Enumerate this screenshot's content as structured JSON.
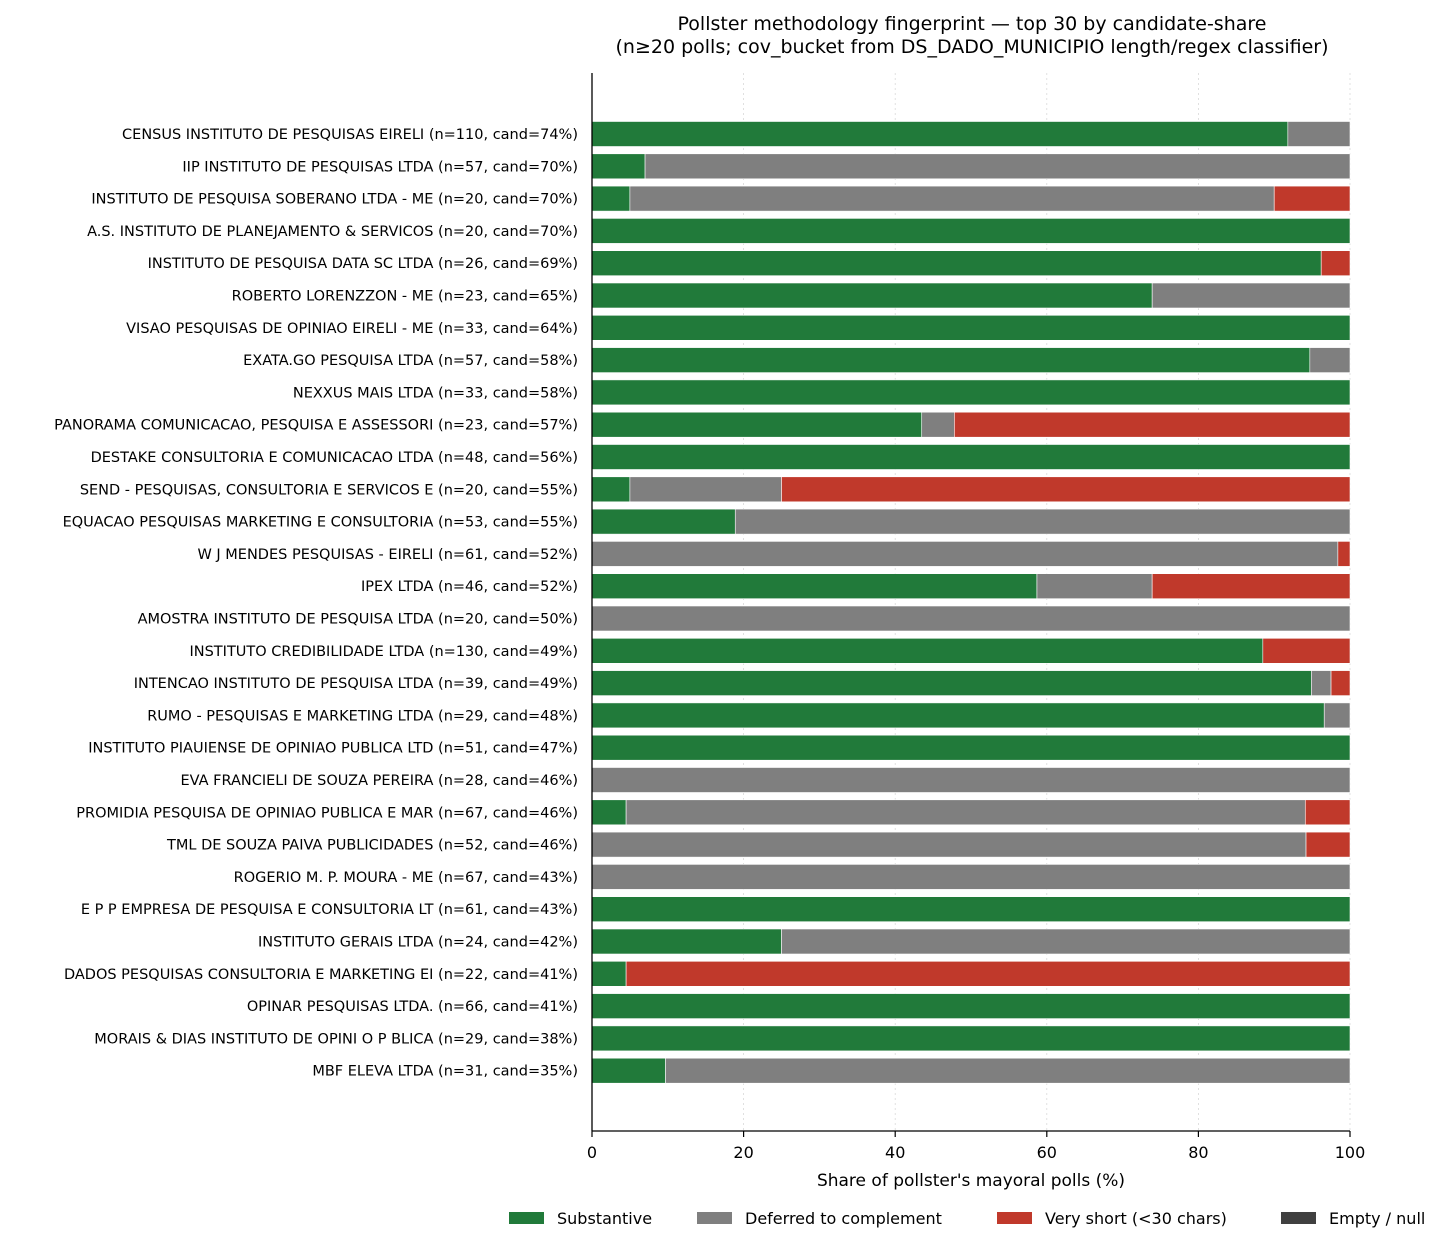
{
  "chart_data": {
    "type": "bar",
    "orientation": "horizontal",
    "stacked": true,
    "title": "Pollster methodology fingerprint — top 30 by candidate-share",
    "subtitle": "(n≥20 polls; cov_bucket from DS_DADO_MUNICIPIO length/regex classifier)",
    "xlabel": "Share of pollster's mayoral polls (%)",
    "ylabel": "",
    "xlim": [
      0,
      100
    ],
    "xticks": [
      "0",
      "20",
      "40",
      "60",
      "80",
      "100"
    ],
    "grid": "vertical dotted",
    "legend_position": "bottom",
    "categories": [
      "CENSUS INSTITUTO DE PESQUISAS EIRELI  (n=110, cand=74%)",
      "IIP INSTITUTO DE PESQUISAS LTDA  (n=57, cand=70%)",
      "INSTITUTO DE PESQUISA SOBERANO LTDA - ME  (n=20, cand=70%)",
      "A.S. INSTITUTO DE PLANEJAMENTO & SERVICOS   (n=20, cand=70%)",
      "INSTITUTO DE PESQUISA DATA SC LTDA  (n=26, cand=69%)",
      "ROBERTO LORENZZON - ME  (n=23, cand=65%)",
      "VISAO PESQUISAS DE OPINIAO EIRELI  - ME  (n=33, cand=64%)",
      "EXATA.GO PESQUISA LTDA  (n=57, cand=58%)",
      "NEXXUS MAIS LTDA  (n=33, cand=58%)",
      "PANORAMA COMUNICACAO, PESQUISA E ASSESSORI  (n=23, cand=57%)",
      "DESTAKE CONSULTORIA E COMUNICACAO LTDA  (n=48, cand=56%)",
      "SEND - PESQUISAS, CONSULTORIA E SERVICOS E  (n=20, cand=55%)",
      "EQUACAO PESQUISAS MARKETING E CONSULTORIA   (n=53, cand=55%)",
      "W J MENDES PESQUISAS - EIRELI  (n=61, cand=52%)",
      "IPEX LTDA  (n=46, cand=52%)",
      "AMOSTRA INSTITUTO DE PESQUISA LTDA  (n=20, cand=50%)",
      "INSTITUTO CREDIBILIDADE LTDA  (n=130, cand=49%)",
      "INTENCAO INSTITUTO DE PESQUISA LTDA  (n=39, cand=49%)",
      "RUMO - PESQUISAS E MARKETING LTDA  (n=29, cand=48%)",
      "INSTITUTO PIAUIENSE DE OPINIAO PUBLICA LTD  (n=51, cand=47%)",
      "EVA FRANCIELI DE SOUZA PEREIRA  (n=28, cand=46%)",
      "PROMIDIA PESQUISA DE OPINIAO PUBLICA E MAR  (n=67, cand=46%)",
      "TML DE SOUZA PAIVA PUBLICIDADES  (n=52, cand=46%)",
      "ROGERIO M. P. MOURA - ME  (n=67, cand=43%)",
      "E P P EMPRESA DE PESQUISA E CONSULTORIA LT  (n=61, cand=43%)",
      "INSTITUTO GERAIS LTDA  (n=24, cand=42%)",
      "DADOS PESQUISAS CONSULTORIA E MARKETING EI  (n=22, cand=41%)",
      "OPINAR PESQUISAS LTDA.  (n=66, cand=41%)",
      "MORAIS & DIAS INSTITUTO DE OPINI O P BLICA  (n=29, cand=38%)",
      "MBF ELEVA LTDA  (n=31, cand=35%)"
    ],
    "series": [
      {
        "name": "Substantive",
        "color": "#217a3a",
        "values": [
          91.8,
          7.0,
          5.0,
          100,
          96.2,
          73.9,
          100,
          94.7,
          100,
          43.5,
          100,
          5.0,
          18.9,
          0,
          58.7,
          0,
          88.5,
          94.9,
          96.6,
          100,
          0,
          4.5,
          0,
          0,
          100,
          25.0,
          4.5,
          100,
          100,
          9.7
        ]
      },
      {
        "name": "Deferred to complement",
        "color": "#7f7f7f",
        "values": [
          8.2,
          93.0,
          85.0,
          0,
          0,
          26.1,
          0,
          5.3,
          0,
          4.3,
          0,
          20.0,
          81.1,
          98.4,
          15.2,
          100,
          0,
          2.6,
          3.4,
          0,
          100,
          89.6,
          94.2,
          100,
          0,
          75.0,
          0,
          0,
          0,
          90.3
        ]
      },
      {
        "name": "Very short (<30 chars)",
        "color": "#c0392b",
        "values": [
          0,
          0,
          10.0,
          0,
          3.8,
          0,
          0,
          0,
          0,
          52.2,
          0,
          75.0,
          0,
          1.6,
          26.1,
          0,
          11.5,
          2.5,
          0,
          0,
          0,
          5.9,
          5.8,
          0,
          0,
          0,
          95.5,
          0,
          0,
          0
        ]
      },
      {
        "name": "Empty / null",
        "color": "#404040",
        "values": [
          0,
          0,
          0,
          0,
          0,
          0,
          0,
          0,
          0,
          0,
          0,
          0,
          0,
          0,
          0,
          0,
          0,
          0,
          0,
          0,
          0,
          0,
          0,
          0,
          0,
          0,
          0,
          0,
          0,
          0
        ]
      }
    ]
  }
}
